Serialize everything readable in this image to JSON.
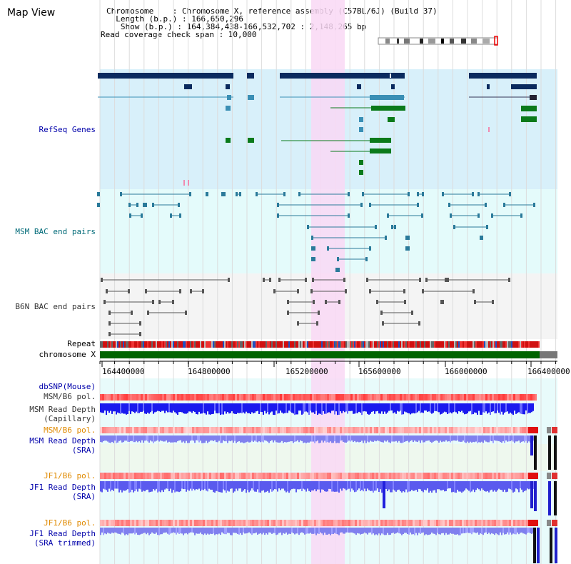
{
  "title": "Map View",
  "info": {
    "chromosome": "Chromosome    : Chromosome X, reference assembly (C57BL/6J) (Build 37)",
    "length": "  Length (b.p.) : 166,650,296",
    "show": "   Show (b.p.) : 164,384,438-166,532,702 : 2,148,265 bp",
    "coverage": "Read coverage check span : 10,000"
  },
  "tracks": {
    "refseq": "RefSeq Genes",
    "msm_bac": "MSM BAC end pairs",
    "b6n_bac": "B6N BAC end pairs",
    "repeat": "Repeat",
    "chromosome": "chromosome X",
    "dbsnp": "dbSNP(Mouse)",
    "msm_b6_pol_1": "MSM/B6 pol.",
    "msm_depth_cap_1": "MSM Read Depth",
    "msm_depth_cap_2": "(Capillary)",
    "msm_b6_pol_2": "MSM/B6 pol.",
    "msm_depth_sra_1": "MSM Read Depth",
    "msm_depth_sra_2": "(SRA)",
    "jf1_b6_pol_1": "JF1/B6 pol.",
    "jf1_depth_sra_1": "JF1 Read Depth",
    "jf1_depth_sra_2": "(SRA)",
    "jf1_b6_pol_2": "JF1/B6 pol.",
    "jf1_depth_trim_1": "JF1 Read Depth",
    "jf1_depth_trim_2": "(SRA trimmed)"
  },
  "axis": {
    "ticks": [
      "164400000",
      "164800000",
      "165200000",
      "165600000",
      "166000000",
      "166400000"
    ]
  },
  "colors": {
    "refseq_bg": "#d8f0fa",
    "msm_bg": "#e4fbfb",
    "b6n_bg": "#f4f4f4",
    "highlight": "#f9d8f4",
    "label_blue": "#0000aa",
    "label_teal": "#006a78",
    "label_orange": "#e08a00",
    "label_gray": "#333333"
  }
}
